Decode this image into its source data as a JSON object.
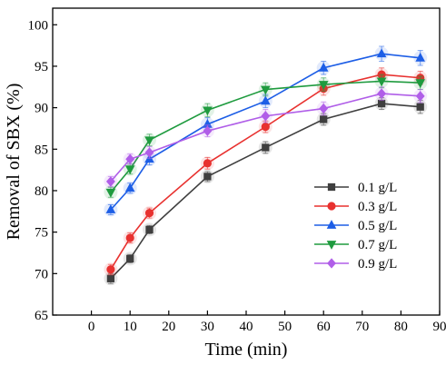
{
  "chart_data": {
    "type": "line",
    "xlabel": "Time (min)",
    "ylabel": "Removal of SBX (%)",
    "xlim": [
      -10,
      90
    ],
    "ylim": [
      65,
      102
    ],
    "xticks": [
      0,
      10,
      20,
      30,
      40,
      50,
      60,
      70,
      80,
      90
    ],
    "yticks": [
      65,
      70,
      75,
      80,
      85,
      90,
      95,
      100
    ],
    "x": [
      5,
      10,
      15,
      30,
      45,
      60,
      75,
      85
    ],
    "grid": false,
    "legend_position": "center-right",
    "series": [
      {
        "name": "0.1 g/L",
        "color": "#3f3f3f",
        "marker": "square",
        "values": [
          69.4,
          71.8,
          75.3,
          81.7,
          85.2,
          88.6,
          90.5,
          90.1
        ],
        "error": [
          0.6,
          0.5,
          0.5,
          0.6,
          0.7,
          0.7,
          0.7,
          0.8
        ]
      },
      {
        "name": "0.3 g/L",
        "color": "#e8312f",
        "marker": "circle",
        "values": [
          70.5,
          74.3,
          77.3,
          83.3,
          87.7,
          92.3,
          94.0,
          93.6
        ],
        "error": [
          0.6,
          0.6,
          0.6,
          0.7,
          0.7,
          0.8,
          0.8,
          0.8
        ]
      },
      {
        "name": "0.5 g/L",
        "color": "#1d5ee6",
        "marker": "triangle-up",
        "values": [
          77.7,
          80.3,
          83.8,
          88.0,
          90.8,
          94.8,
          96.5,
          96.0
        ],
        "error": [
          0.6,
          0.6,
          0.7,
          0.8,
          0.8,
          0.8,
          0.9,
          0.9
        ]
      },
      {
        "name": "0.7 g/L",
        "color": "#1f9b3f",
        "marker": "triangle-down",
        "values": [
          79.8,
          82.6,
          86.1,
          89.7,
          92.2,
          92.8,
          93.2,
          93.0
        ],
        "error": [
          0.6,
          0.6,
          0.7,
          0.8,
          0.8,
          0.8,
          0.8,
          0.8
        ]
      },
      {
        "name": "0.9 g/L",
        "color": "#b05ee8",
        "marker": "diamond",
        "values": [
          81.1,
          83.8,
          84.6,
          87.2,
          89.0,
          89.9,
          91.7,
          91.4
        ],
        "error": [
          0.6,
          0.6,
          0.7,
          0.7,
          0.8,
          0.8,
          0.8,
          0.8
        ]
      }
    ]
  }
}
